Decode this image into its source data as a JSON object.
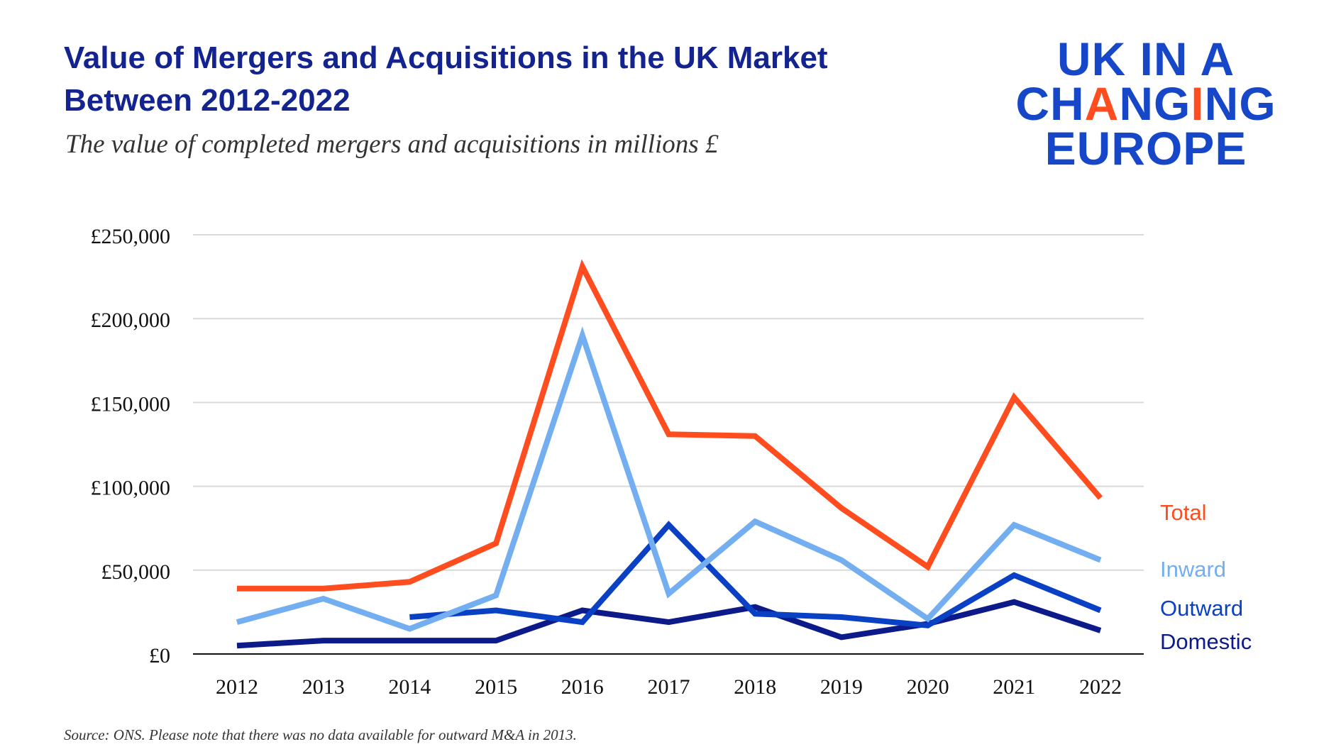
{
  "header": {
    "title_line1": "Value of Mergers and Acquisitions in the UK Market",
    "title_line2": "Between 2012-2022",
    "subtitle": "The value of completed mergers and acquisitions in millions £"
  },
  "logo": {
    "line1": "UK IN A",
    "line2_a": "CH",
    "line2_b": "A",
    "line2_c": "N",
    "line2_d": "G",
    "line2_e": "I",
    "line2_f": "NG",
    "line3": "EUROPE",
    "accent_color": "#ff4d1f",
    "brand_color": "#1747c9"
  },
  "footnote": "Source: ONS. Please note that there was no data available for outward M&A in 2013.",
  "chart_data": {
    "type": "line",
    "title": "Value of Mergers and Acquisitions in the UK Market Between 2012-2022",
    "subtitle": "The value of completed mergers and acquisitions in millions £",
    "x": [
      2012,
      2013,
      2014,
      2015,
      2016,
      2017,
      2018,
      2019,
      2020,
      2021,
      2022
    ],
    "y_ticks": [
      0,
      50000,
      100000,
      150000,
      200000,
      250000
    ],
    "y_tick_labels": [
      "£0",
      "£50,000",
      "£100,000",
      "£150,000",
      "£200,000",
      "£250,000"
    ],
    "ylim": [
      0,
      250000
    ],
    "grid": true,
    "legend_placement": "right, at line ends",
    "series": [
      {
        "name": "Total",
        "color": "#ff4d1f",
        "values": [
          39000,
          39000,
          43000,
          66000,
          231000,
          131000,
          130000,
          87000,
          52000,
          153000,
          93000
        ]
      },
      {
        "name": "Inward",
        "color": "#73aef0",
        "values": [
          19000,
          33000,
          15000,
          35000,
          190000,
          36000,
          79000,
          56000,
          21000,
          77000,
          56000
        ]
      },
      {
        "name": "Outward",
        "color": "#0a41c4",
        "values": [
          null,
          null,
          22000,
          26000,
          19000,
          77000,
          24000,
          22000,
          17000,
          47000,
          26000
        ]
      },
      {
        "name": "Domestic",
        "color": "#0c1a8a",
        "values": [
          5000,
          8000,
          8000,
          8000,
          26000,
          19000,
          28000,
          10000,
          18000,
          31000,
          14000
        ]
      }
    ]
  }
}
